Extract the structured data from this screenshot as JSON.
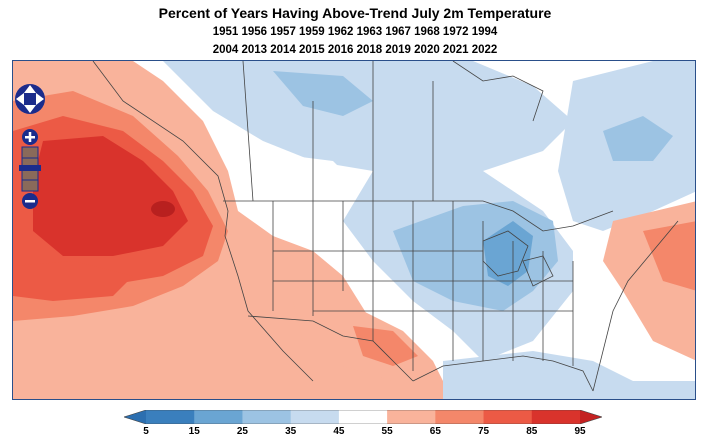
{
  "header": {
    "title": "Percent of Years Having Above-Trend July 2m Temperature",
    "years_line1": "1951 1956 1957 1959 1962 1963 1967 1968 1972 1994",
    "years_line2": "2004 2013 2014 2015 2016 2018 2019 2020 2021 2022"
  },
  "map": {
    "variable": "Percent of years with above-trend July 2m temperature",
    "controls": {
      "pan_icon": "pan-arrows-icon",
      "zoom_in_label": "+",
      "zoom_out_label": "−"
    }
  },
  "legend": {
    "ticks": [
      "5",
      "15",
      "25",
      "35",
      "45",
      "55",
      "65",
      "75",
      "85",
      "95"
    ],
    "colors": [
      "#3a7fbd",
      "#6aa5d3",
      "#9cc3e3",
      "#c7dbef",
      "#ffffff",
      "#f9b39b",
      "#f4876a",
      "#ec5a45",
      "#d9332c"
    ],
    "extend_low_color": "#2c6fb0",
    "extend_high_color": "#c42222"
  }
}
